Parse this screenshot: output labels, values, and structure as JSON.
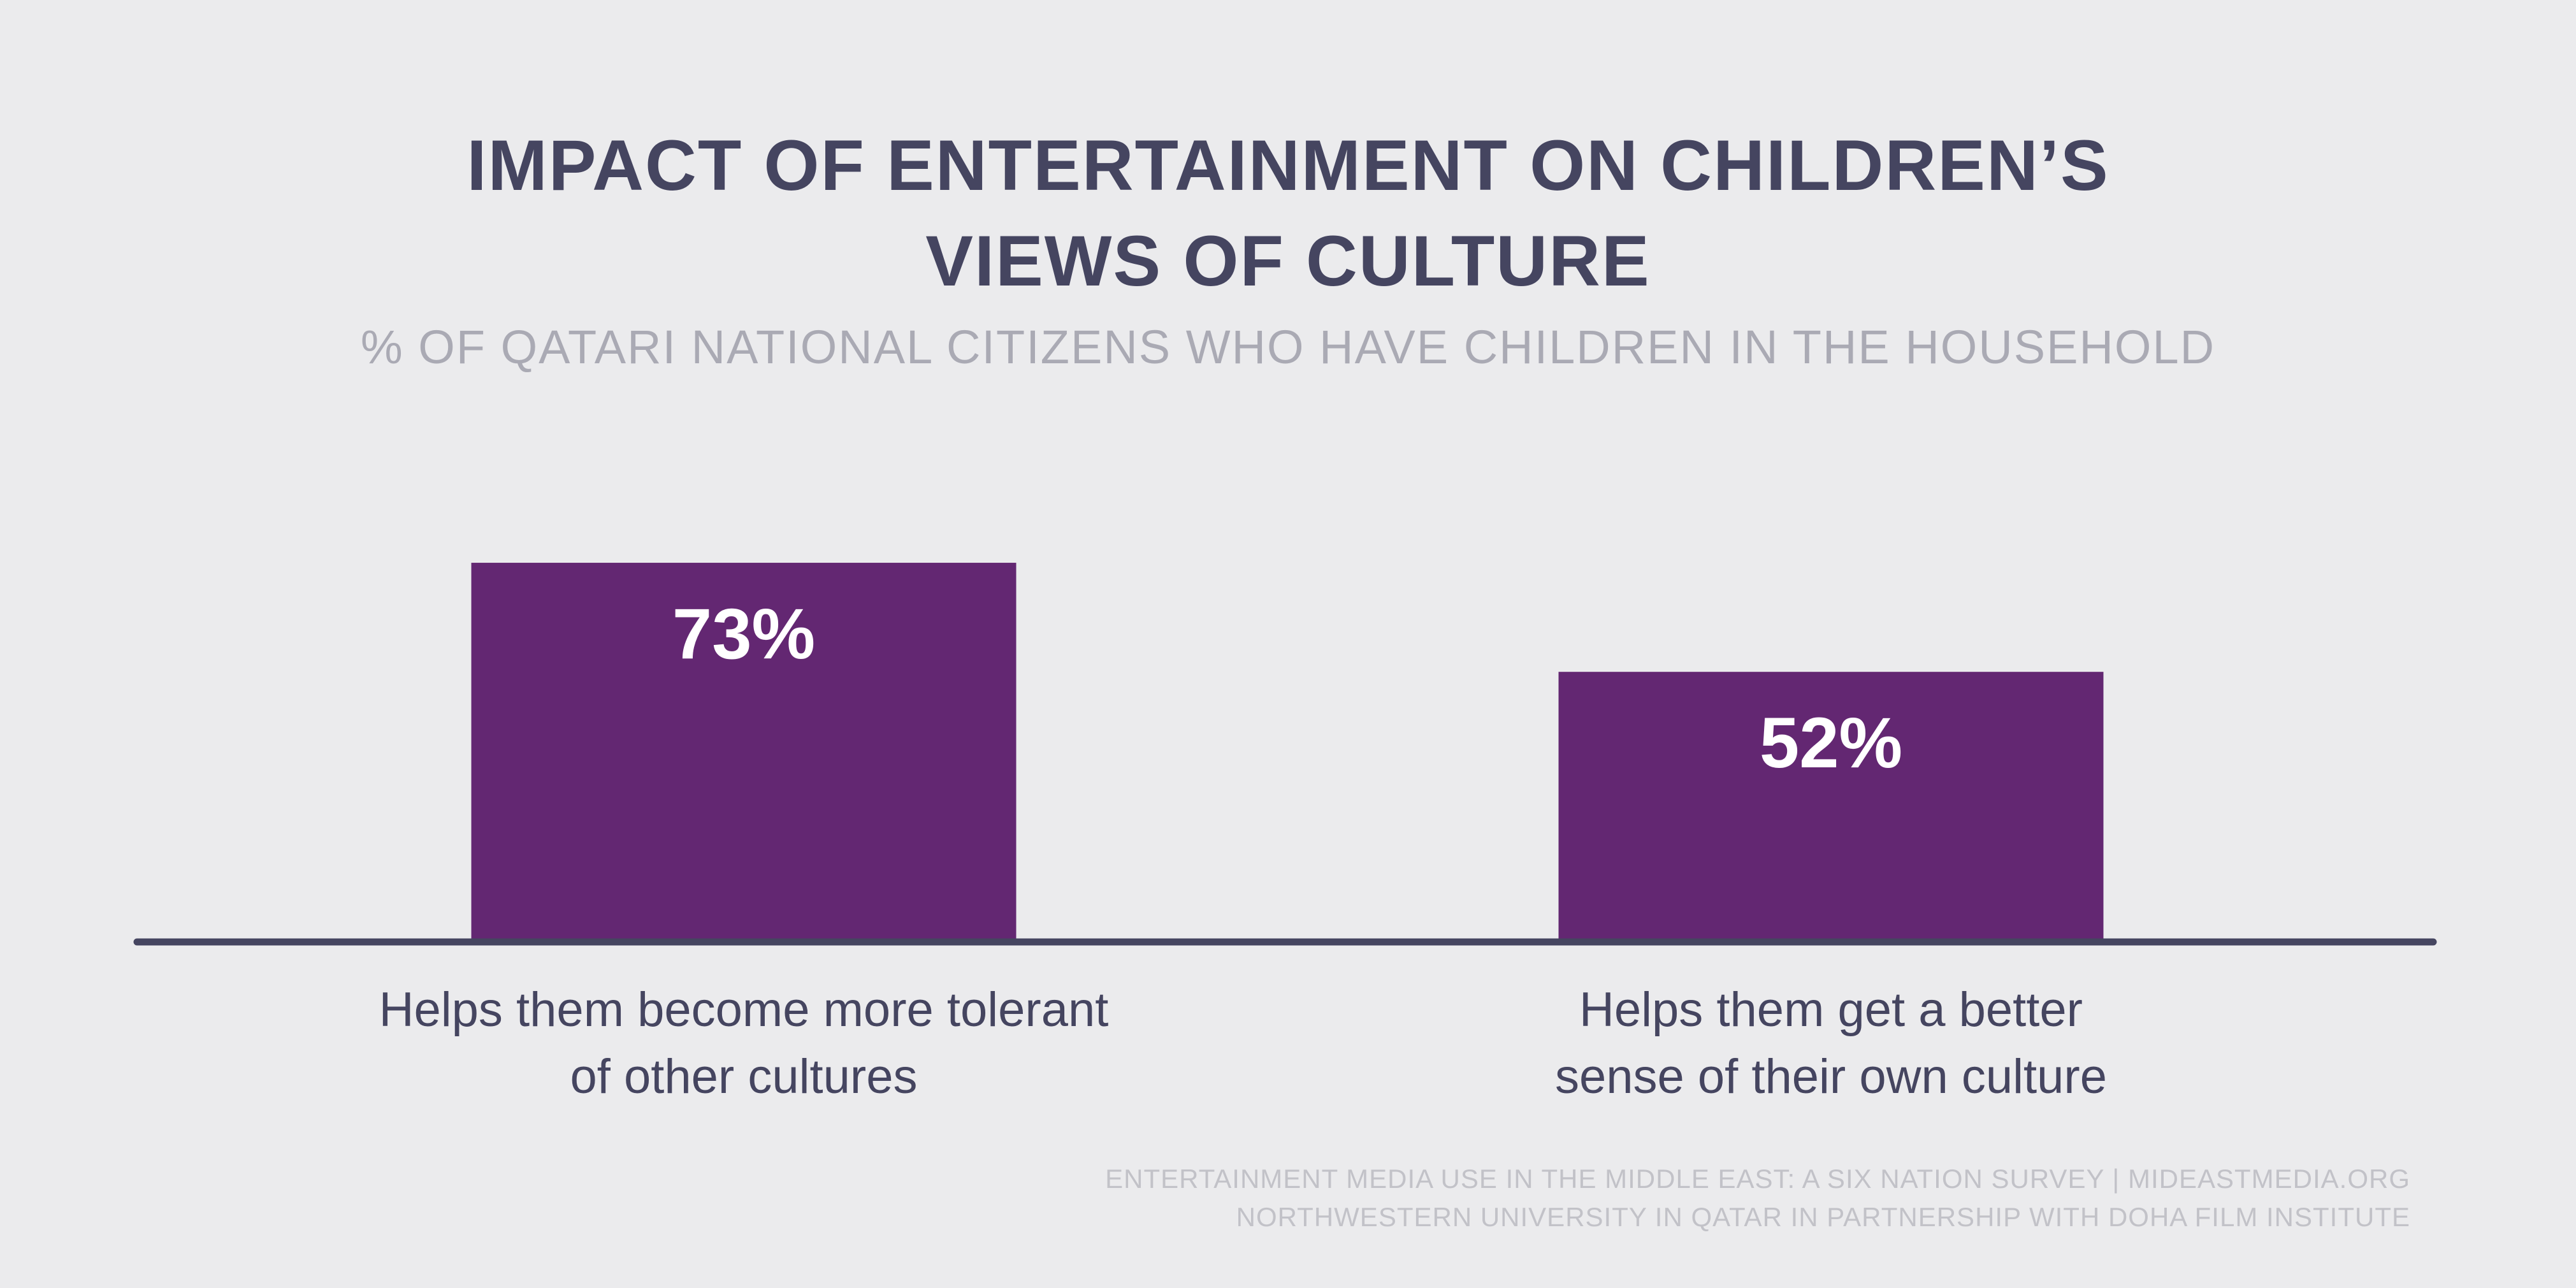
{
  "title_line_1": "IMPACT OF ENTERTAINMENT ON CHILDREN’S",
  "title_line_2": "VIEWS OF CULTURE",
  "subtitle": "% OF QATARI NATIONAL CITIZENS WHO HAVE CHILDREN IN THE HOUSEHOLD",
  "footer_line_1": "ENTERTAINMENT MEDIA USE IN THE MIDDLE EAST: A SIX NATION SURVEY | MIDEASTMEDIA.ORG",
  "footer_line_2": "NORTHWESTERN UNIVERSITY IN QATAR IN PARTNERSHIP WITH DOHA FILM INSTITUTE",
  "colors": {
    "bar": "#632772",
    "bar_label": "#ffffff",
    "baseline": "#454560",
    "category_text": "#454560"
  },
  "chart_data": {
    "type": "bar",
    "title": "IMPACT OF ENTERTAINMENT ON CHILDREN’S VIEWS OF CULTURE",
    "subtitle": "% OF QATARI NATIONAL CITIZENS WHO HAVE CHILDREN IN THE HOUSEHOLD",
    "categories": [
      [
        "Helps them become more tolerant",
        "of other cultures"
      ],
      [
        "Helps them get a better",
        "sense of their own culture"
      ]
    ],
    "values": [
      73,
      52
    ],
    "data_labels": [
      "73%",
      "52%"
    ],
    "xlabel": "",
    "ylabel": "",
    "ylim": [
      0,
      100
    ],
    "grid": false,
    "legend": "none"
  }
}
